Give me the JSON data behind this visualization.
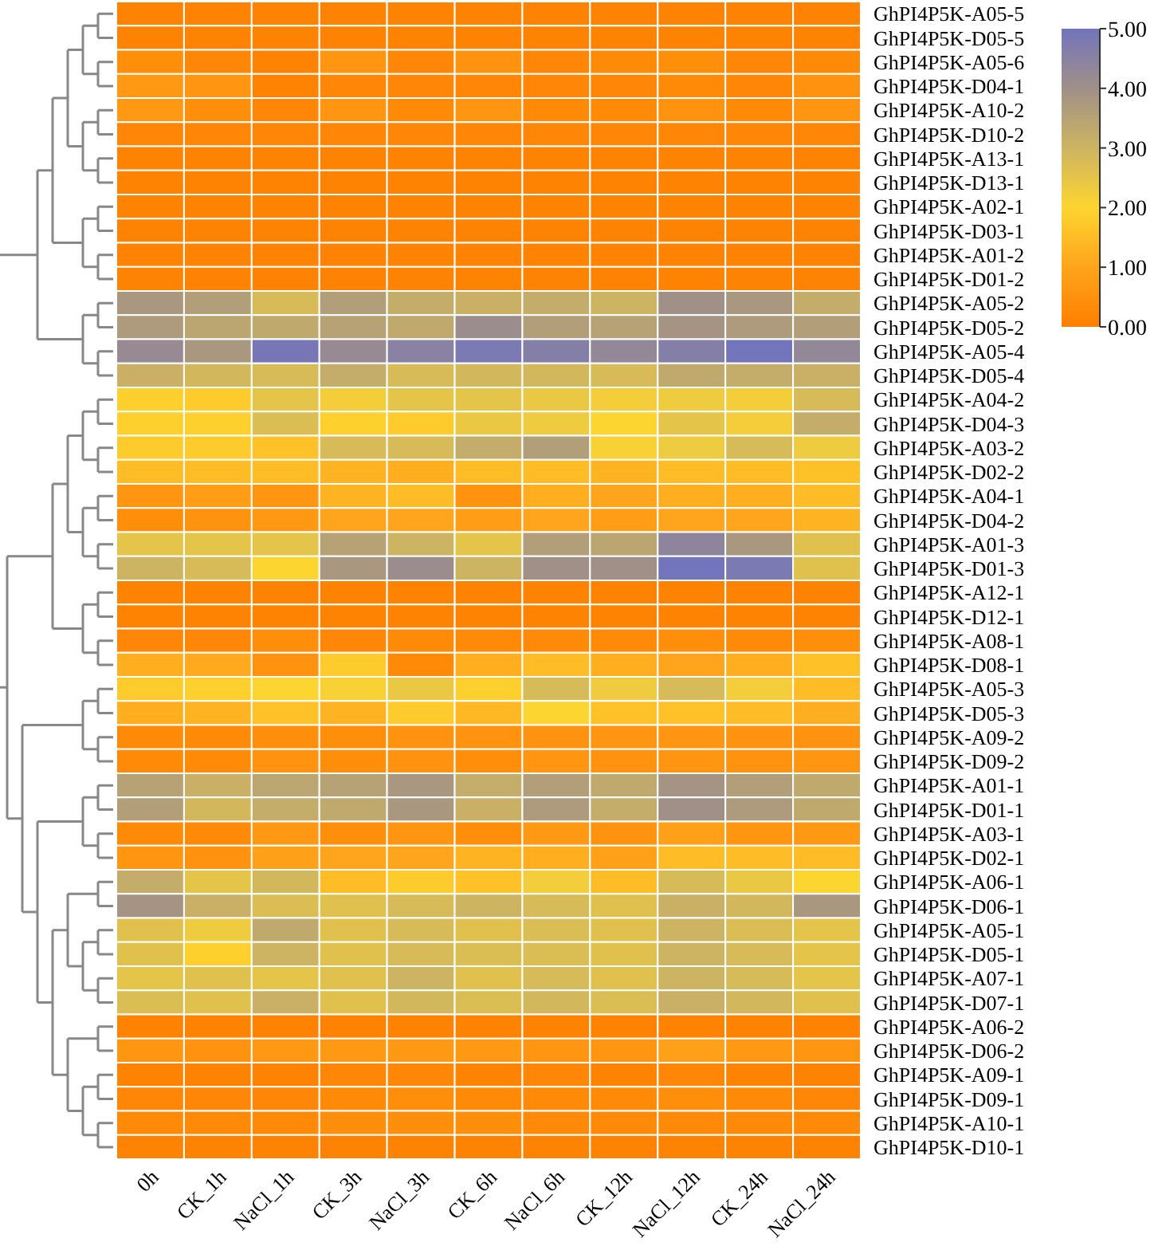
{
  "chart_data": {
    "type": "heatmap",
    "categories": [
      "0h",
      "CK_1h",
      "NaCl_1h",
      "CK_3h",
      "NaCl_3h",
      "CK_6h",
      "NaCl_6h",
      "CK_12h",
      "NaCl_12h",
      "CK_24h",
      "NaCl_24h"
    ],
    "y_categories": [
      "GhPI4P5K-A05-5",
      "GhPI4P5K-D05-5",
      "GhPI4P5K-A05-6",
      "GhPI4P5K-D04-1",
      "GhPI4P5K-A10-2",
      "GhPI4P5K-D10-2",
      "GhPI4P5K-A13-1",
      "GhPI4P5K-D13-1",
      "GhPI4P5K-A02-1",
      "GhPI4P5K-D03-1",
      "GhPI4P5K-A01-2",
      "GhPI4P5K-D01-2",
      "GhPI4P5K-A05-2",
      "GhPI4P5K-D05-2",
      "GhPI4P5K-A05-4",
      "GhPI4P5K-D05-4",
      "GhPI4P5K-A04-2",
      "GhPI4P5K-D04-3",
      "GhPI4P5K-A03-2",
      "GhPI4P5K-D02-2",
      "GhPI4P5K-A04-1",
      "GhPI4P5K-D04-2",
      "GhPI4P5K-A01-3",
      "GhPI4P5K-D01-3",
      "GhPI4P5K-A12-1",
      "GhPI4P5K-D12-1",
      "GhPI4P5K-A08-1",
      "GhPI4P5K-D08-1",
      "GhPI4P5K-A05-3",
      "GhPI4P5K-D05-3",
      "GhPI4P5K-A09-2",
      "GhPI4P5K-D09-2",
      "GhPI4P5K-A01-1",
      "GhPI4P5K-D01-1",
      "GhPI4P5K-A03-1",
      "GhPI4P5K-D02-1",
      "GhPI4P5K-A06-1",
      "GhPI4P5K-D06-1",
      "GhPI4P5K-A05-1",
      "GhPI4P5K-D05-1",
      "GhPI4P5K-A07-1",
      "GhPI4P5K-D07-1",
      "GhPI4P5K-A06-2",
      "GhPI4P5K-D06-2",
      "GhPI4P5K-A09-1",
      "GhPI4P5K-D09-1",
      "GhPI4P5K-A10-1",
      "GhPI4P5K-D10-1"
    ],
    "cells": [
      [
        0.1,
        0.1,
        0.1,
        0.1,
        0.1,
        0.1,
        0.1,
        0.1,
        0.1,
        0.1,
        0.1
      ],
      [
        0.1,
        0.1,
        0.1,
        0.1,
        0.1,
        0.1,
        0.1,
        0.1,
        0.1,
        0.1,
        0.1
      ],
      [
        0.4,
        0.2,
        0.1,
        0.6,
        0.2,
        0.5,
        0.2,
        0.3,
        0.4,
        0.2,
        0.3
      ],
      [
        0.7,
        0.6,
        0.1,
        0.2,
        0.2,
        0.2,
        0.2,
        0.2,
        0.3,
        0.2,
        0.5
      ],
      [
        0.7,
        0.4,
        0.2,
        0.6,
        0.3,
        0.6,
        0.3,
        0.3,
        0.5,
        0.3,
        0.6
      ],
      [
        0.2,
        0.2,
        0.2,
        0.2,
        0.2,
        0.2,
        0.2,
        0.2,
        0.2,
        0.2,
        0.2
      ],
      [
        0.1,
        0.1,
        0.1,
        0.1,
        0.1,
        0.1,
        0.1,
        0.1,
        0.1,
        0.1,
        0.1
      ],
      [
        0.1,
        0.1,
        0.1,
        0.1,
        0.1,
        0.1,
        0.1,
        0.1,
        0.1,
        0.1,
        0.1
      ],
      [
        0.1,
        0.1,
        0.1,
        0.1,
        0.1,
        0.1,
        0.1,
        0.1,
        0.1,
        0.1,
        0.1
      ],
      [
        0.1,
        0.1,
        0.1,
        0.1,
        0.1,
        0.1,
        0.1,
        0.1,
        0.1,
        0.1,
        0.1
      ],
      [
        0.1,
        0.1,
        0.1,
        0.1,
        0.1,
        0.1,
        0.1,
        0.1,
        0.1,
        0.1,
        0.1
      ],
      [
        0.1,
        0.1,
        0.1,
        0.1,
        0.1,
        0.1,
        0.1,
        0.1,
        0.1,
        0.1,
        0.1
      ],
      [
        3.8,
        3.6,
        2.8,
        3.6,
        3.2,
        3.1,
        3.2,
        3.0,
        4.0,
        3.8,
        3.2
      ],
      [
        3.7,
        3.4,
        3.3,
        3.5,
        3.3,
        4.1,
        3.6,
        3.5,
        3.9,
        3.7,
        3.6
      ],
      [
        4.2,
        3.8,
        4.9,
        4.2,
        4.5,
        4.8,
        4.6,
        4.3,
        4.6,
        5.0,
        4.3
      ],
      [
        3.1,
        2.9,
        2.8,
        3.2,
        2.8,
        2.9,
        2.9,
        2.8,
        3.3,
        3.2,
        3.1
      ],
      [
        1.9,
        1.8,
        2.5,
        2.2,
        2.5,
        2.5,
        2.4,
        2.2,
        2.3,
        2.2,
        2.8
      ],
      [
        1.9,
        1.9,
        2.7,
        1.9,
        1.8,
        2.4,
        2.3,
        2.0,
        2.5,
        2.2,
        3.2
      ],
      [
        1.8,
        1.8,
        1.6,
        2.8,
        2.8,
        3.2,
        3.6,
        2.1,
        2.3,
        2.8,
        2.3
      ],
      [
        1.5,
        1.5,
        1.5,
        1.3,
        1.2,
        1.5,
        1.5,
        1.3,
        1.5,
        1.5,
        1.6
      ],
      [
        0.6,
        0.8,
        0.6,
        1.3,
        1.5,
        0.5,
        1.2,
        1.0,
        1.2,
        1.2,
        1.5
      ],
      [
        0.4,
        0.5,
        0.7,
        1.0,
        1.0,
        0.8,
        1.0,
        0.8,
        1.0,
        1.0,
        1.3
      ],
      [
        2.5,
        2.5,
        2.5,
        3.5,
        3.0,
        2.5,
        3.6,
        3.4,
        4.4,
        3.8,
        2.6
      ],
      [
        3.0,
        2.8,
        2.0,
        3.8,
        4.1,
        3.0,
        4.0,
        4.0,
        5.0,
        4.8,
        2.6
      ],
      [
        0.1,
        0.1,
        0.1,
        0.1,
        0.1,
        0.1,
        0.1,
        0.1,
        0.1,
        0.1,
        0.1
      ],
      [
        0.1,
        0.1,
        0.1,
        0.1,
        0.1,
        0.1,
        0.1,
        0.1,
        0.1,
        0.1,
        0.1
      ],
      [
        0.2,
        0.2,
        0.4,
        0.2,
        0.3,
        0.3,
        0.3,
        0.3,
        0.4,
        0.3,
        0.4
      ],
      [
        1.2,
        1.1,
        0.5,
        1.8,
        0.3,
        1.2,
        1.5,
        1.2,
        1.0,
        1.2,
        1.6
      ],
      [
        1.8,
        1.9,
        2.0,
        2.1,
        2.4,
        1.9,
        2.8,
        2.3,
        2.8,
        2.2,
        1.5
      ],
      [
        1.2,
        1.3,
        1.6,
        1.3,
        1.8,
        1.4,
        2.0,
        1.6,
        1.6,
        1.5,
        1.2
      ],
      [
        0.3,
        0.3,
        0.4,
        0.4,
        0.5,
        0.5,
        0.5,
        0.6,
        0.6,
        0.5,
        0.5
      ],
      [
        0.3,
        0.3,
        0.5,
        0.4,
        0.5,
        0.4,
        0.6,
        0.5,
        0.6,
        0.5,
        0.6
      ],
      [
        3.5,
        3.1,
        3.4,
        3.5,
        3.8,
        3.2,
        3.6,
        3.3,
        3.9,
        3.6,
        3.3
      ],
      [
        3.6,
        2.9,
        3.2,
        3.3,
        3.8,
        3.1,
        3.7,
        3.2,
        4.0,
        3.7,
        3.3
      ],
      [
        0.3,
        0.3,
        0.7,
        0.4,
        0.6,
        0.4,
        0.7,
        0.5,
        0.9,
        0.6,
        0.7
      ],
      [
        0.6,
        0.5,
        0.9,
        1.0,
        1.0,
        1.3,
        1.2,
        0.9,
        1.5,
        1.5,
        1.5
      ],
      [
        3.2,
        2.5,
        2.9,
        1.5,
        1.8,
        1.6,
        2.2,
        1.5,
        2.8,
        2.4,
        2.0
      ],
      [
        3.9,
        3.1,
        2.7,
        2.6,
        2.8,
        3.0,
        2.8,
        2.6,
        3.1,
        2.9,
        3.8
      ],
      [
        2.6,
        2.3,
        3.3,
        2.6,
        2.8,
        2.6,
        2.7,
        2.6,
        3.0,
        2.7,
        2.5
      ],
      [
        2.6,
        1.9,
        3.0,
        2.6,
        2.8,
        2.7,
        2.7,
        2.6,
        3.0,
        2.8,
        2.5
      ],
      [
        2.5,
        2.6,
        2.5,
        2.6,
        3.0,
        2.6,
        2.8,
        2.6,
        3.0,
        2.8,
        2.5
      ],
      [
        2.7,
        2.6,
        3.1,
        2.6,
        2.9,
        2.7,
        2.9,
        2.7,
        3.1,
        2.9,
        2.6
      ],
      [
        0.1,
        0.1,
        0.1,
        0.1,
        0.1,
        0.1,
        0.1,
        0.1,
        0.1,
        0.1,
        0.1
      ],
      [
        0.6,
        0.5,
        0.7,
        0.7,
        0.7,
        0.7,
        0.6,
        0.6,
        0.9,
        0.7,
        0.6
      ],
      [
        0.1,
        0.1,
        0.1,
        0.2,
        0.2,
        0.1,
        0.2,
        0.1,
        0.2,
        0.1,
        0.1
      ],
      [
        0.2,
        0.2,
        0.2,
        0.3,
        0.4,
        0.3,
        0.3,
        0.3,
        0.4,
        0.3,
        0.2
      ],
      [
        0.3,
        0.3,
        0.3,
        0.4,
        0.4,
        0.4,
        0.3,
        0.3,
        0.3,
        0.3,
        0.3
      ],
      [
        0.1,
        0.1,
        0.1,
        0.1,
        0.1,
        0.1,
        0.1,
        0.1,
        0.1,
        0.1,
        0.1
      ]
    ],
    "clim": [
      0,
      5
    ],
    "cticks": [
      {
        "value": 0,
        "label": "0.00"
      },
      {
        "value": 1,
        "label": "1.00"
      },
      {
        "value": 2,
        "label": "2.00"
      },
      {
        "value": 3,
        "label": "3.00"
      },
      {
        "value": 4,
        "label": "4.00"
      },
      {
        "value": 5,
        "label": "5.00"
      }
    ]
  }
}
